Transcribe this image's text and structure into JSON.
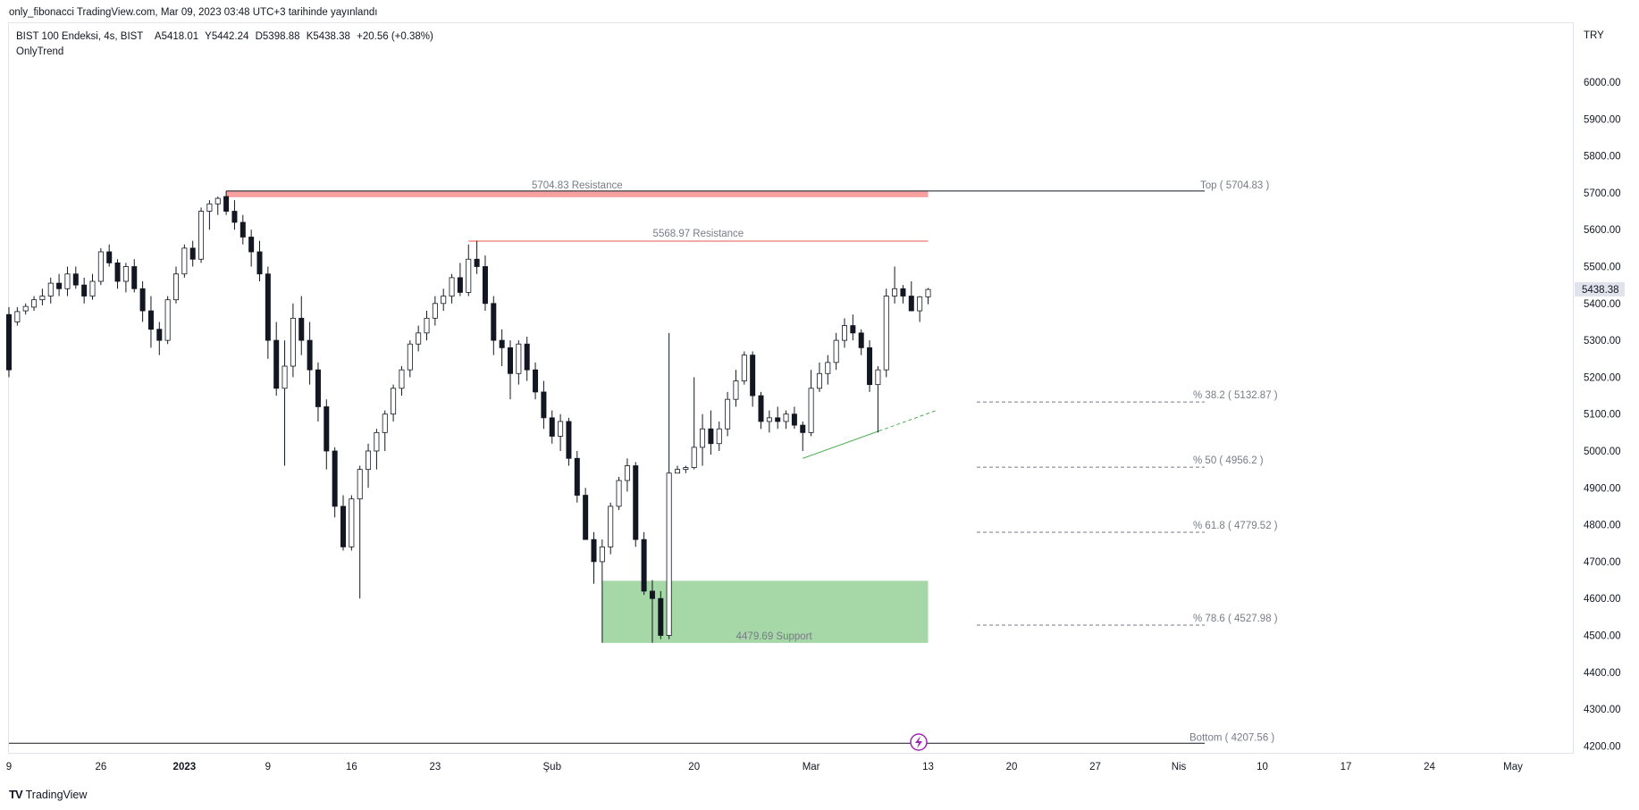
{
  "publish_line": "only_fibonacci TradingView.com, Mar 09, 2023 03:48 UTC+3 tarihinde yayınlandı",
  "legend": {
    "symbol": "BIST 100 Endeksi, 4s, BIST",
    "open": "A5418.01",
    "high": "Y5442.24",
    "low": "D5398.88",
    "close": "K5438.38",
    "change": "+20.56 (+0.38%)"
  },
  "indicator_name": "OnlyTrend",
  "currency": "TRY",
  "branding": "TradingView",
  "colors": {
    "up": "#ffffff",
    "down": "#131722",
    "wick": "#131722",
    "resistance": "#ef5350",
    "support": "#4caf50",
    "fib_line": "#787b86",
    "trend": "#4caf50"
  },
  "chart_data": {
    "type": "candlestick",
    "timeframe": "4s",
    "ylim": [
      4150,
      6090
    ],
    "y_ticks": [
      4200,
      4300,
      4400,
      4500,
      4600,
      4700,
      4800,
      4900,
      5000,
      5100,
      5200,
      5300,
      5400,
      5500,
      5600,
      5700,
      5800,
      5900,
      6000
    ],
    "y_tick_labels": [
      "4200.00",
      "4300.00",
      "4400.00",
      "4500.00",
      "4600.00",
      "4700.00",
      "4800.00",
      "4900.00",
      "5000.00",
      "5100.00",
      "5200.00",
      "5300.00",
      "5400.00",
      "5500.00",
      "5600.00",
      "5700.00",
      "5800.00",
      "5900.00",
      "6000.00"
    ],
    "x_labels": [
      "9",
      "26",
      "2023",
      "9",
      "16",
      "23",
      "Şub",
      "20",
      "Mar",
      "13",
      "20",
      "27",
      "Nis",
      "10",
      "17",
      "24",
      "May"
    ],
    "last_price_label": "5438.38",
    "last_price": 5438.38,
    "candle_range": [
      0,
      110
    ],
    "x_label_index": [
      0,
      11,
      21,
      31,
      41,
      51,
      65,
      82,
      96,
      110,
      120,
      130,
      140,
      150,
      160,
      170,
      180
    ],
    "candles": [
      [
        5370,
        5390,
        5200,
        5220
      ],
      [
        5350,
        5390,
        5340,
        5378
      ],
      [
        5380,
        5400,
        5370,
        5392
      ],
      [
        5390,
        5420,
        5380,
        5410
      ],
      [
        5410,
        5440,
        5395,
        5420
      ],
      [
        5420,
        5470,
        5400,
        5455
      ],
      [
        5455,
        5480,
        5420,
        5440
      ],
      [
        5440,
        5500,
        5420,
        5480
      ],
      [
        5480,
        5500,
        5440,
        5450
      ],
      [
        5450,
        5470,
        5400,
        5420
      ],
      [
        5420,
        5480,
        5410,
        5460
      ],
      [
        5460,
        5550,
        5450,
        5540
      ],
      [
        5540,
        5560,
        5500,
        5510
      ],
      [
        5510,
        5520,
        5440,
        5460
      ],
      [
        5460,
        5510,
        5430,
        5500
      ],
      [
        5500,
        5520,
        5430,
        5440
      ],
      [
        5440,
        5460,
        5350,
        5380
      ],
      [
        5380,
        5420,
        5280,
        5330
      ],
      [
        5330,
        5350,
        5260,
        5300
      ],
      [
        5300,
        5420,
        5290,
        5410
      ],
      [
        5410,
        5500,
        5400,
        5480
      ],
      [
        5480,
        5560,
        5470,
        5550
      ],
      [
        5550,
        5570,
        5500,
        5520
      ],
      [
        5520,
        5660,
        5510,
        5650
      ],
      [
        5650,
        5680,
        5600,
        5670
      ],
      [
        5670,
        5690,
        5640,
        5685
      ],
      [
        5690,
        5705,
        5640,
        5650
      ],
      [
        5650,
        5680,
        5600,
        5620
      ],
      [
        5620,
        5640,
        5560,
        5580
      ],
      [
        5580,
        5600,
        5500,
        5540
      ],
      [
        5540,
        5570,
        5460,
        5480
      ],
      [
        5480,
        5500,
        5250,
        5300
      ],
      [
        5300,
        5350,
        5150,
        5170
      ],
      [
        5170,
        5300,
        4960,
        5230
      ],
      [
        5230,
        5400,
        5200,
        5360
      ],
      [
        5360,
        5420,
        5260,
        5300
      ],
      [
        5300,
        5350,
        5180,
        5220
      ],
      [
        5220,
        5240,
        5080,
        5120
      ],
      [
        5120,
        5140,
        4950,
        5000
      ],
      [
        5000,
        5010,
        4820,
        4850
      ],
      [
        4850,
        4880,
        4730,
        4740
      ],
      [
        4740,
        4880,
        4730,
        4870
      ],
      [
        4870,
        4960,
        4600,
        4950
      ],
      [
        4950,
        5020,
        4900,
        5000
      ],
      [
        5000,
        5060,
        4950,
        5050
      ],
      [
        5050,
        5110,
        5000,
        5100
      ],
      [
        5100,
        5180,
        5080,
        5170
      ],
      [
        5170,
        5230,
        5150,
        5220
      ],
      [
        5220,
        5300,
        5200,
        5290
      ],
      [
        5290,
        5340,
        5270,
        5320
      ],
      [
        5320,
        5380,
        5300,
        5360
      ],
      [
        5360,
        5420,
        5340,
        5400
      ],
      [
        5400,
        5440,
        5380,
        5420
      ],
      [
        5420,
        5480,
        5400,
        5470
      ],
      [
        5470,
        5510,
        5420,
        5430
      ],
      [
        5430,
        5560,
        5420,
        5520
      ],
      [
        5520,
        5570,
        5480,
        5500
      ],
      [
        5500,
        5530,
        5380,
        5400
      ],
      [
        5400,
        5420,
        5260,
        5300
      ],
      [
        5300,
        5330,
        5230,
        5280
      ],
      [
        5280,
        5300,
        5140,
        5210
      ],
      [
        5210,
        5300,
        5180,
        5290
      ],
      [
        5290,
        5310,
        5190,
        5220
      ],
      [
        5220,
        5240,
        5140,
        5160
      ],
      [
        5160,
        5190,
        5060,
        5090
      ],
      [
        5090,
        5110,
        5020,
        5040
      ],
      [
        5040,
        5100,
        5000,
        5080
      ],
      [
        5080,
        5090,
        4960,
        4980
      ],
      [
        4980,
        5000,
        4860,
        4880
      ],
      [
        4880,
        4900,
        4760,
        4760
      ],
      [
        4760,
        4780,
        4640,
        4700
      ],
      [
        4700,
        4760,
        4480,
        4740
      ],
      [
        4740,
        4860,
        4720,
        4850
      ],
      [
        4850,
        4930,
        4840,
        4920
      ],
      [
        4920,
        4980,
        4890,
        4960
      ],
      [
        4960,
        4970,
        4740,
        4760
      ],
      [
        4760,
        4780,
        4610,
        4620
      ],
      [
        4620,
        4650,
        4480,
        4600
      ],
      [
        4600,
        4620,
        4490,
        4500
      ],
      [
        4500,
        5320,
        4490,
        4940
      ],
      [
        4940,
        4960,
        4940,
        4950
      ],
      [
        4950,
        4960,
        4940,
        4955
      ],
      [
        4955,
        5200,
        4950,
        5010
      ],
      [
        5010,
        5100,
        4960,
        5060
      ],
      [
        5060,
        5110,
        4990,
        5020
      ],
      [
        5020,
        5080,
        5000,
        5060
      ],
      [
        5060,
        5160,
        5040,
        5140
      ],
      [
        5140,
        5220,
        5120,
        5190
      ],
      [
        5190,
        5270,
        5180,
        5260
      ],
      [
        5260,
        5270,
        5120,
        5150
      ],
      [
        5150,
        5160,
        5060,
        5080
      ],
      [
        5080,
        5110,
        5050,
        5090
      ],
      [
        5090,
        5120,
        5060,
        5080
      ],
      [
        5080,
        5110,
        5060,
        5100
      ],
      [
        5100,
        5120,
        5060,
        5070
      ],
      [
        5070,
        5080,
        5000,
        5050
      ],
      [
        5050,
        5220,
        5040,
        5170
      ],
      [
        5170,
        5240,
        5160,
        5210
      ],
      [
        5210,
        5260,
        5180,
        5240
      ],
      [
        5240,
        5320,
        5220,
        5300
      ],
      [
        5300,
        5360,
        5280,
        5340
      ],
      [
        5340,
        5370,
        5300,
        5320
      ],
      [
        5320,
        5330,
        5260,
        5280
      ],
      [
        5280,
        5300,
        5160,
        5180
      ],
      [
        5180,
        5230,
        5050,
        5220
      ],
      [
        5220,
        5440,
        5200,
        5420
      ],
      [
        5420,
        5500,
        5400,
        5440
      ],
      [
        5440,
        5450,
        5400,
        5420
      ],
      [
        5420,
        5460,
        5380,
        5380
      ],
      [
        5380,
        5420,
        5350,
        5418
      ],
      [
        5418,
        5442,
        5398,
        5438
      ]
    ],
    "annotations": {
      "resistance_1": {
        "label": "5704.83 Resistance",
        "value": 5704.83,
        "band_low": 5688,
        "from_index": 26,
        "to_index": 110
      },
      "resistance_2": {
        "label": "5568.97 Resistance",
        "value": 5568.97,
        "from_index": 55,
        "to_index": 110
      },
      "support": {
        "label": "4479.69 Support",
        "value": 4479.69,
        "band_high": 4648,
        "from_index": 71,
        "to_index": 110
      },
      "top": {
        "label": "Top ( 5704.83 )",
        "value": 5704.83
      },
      "bottom": {
        "label": "Bottom ( 4207.56 )",
        "value": 4207.56
      },
      "fib_levels": [
        {
          "label": "% 38.2 ( 5132.87 )",
          "value": 5132.87
        },
        {
          "label": "% 50 ( 4956.2 )",
          "value": 4956.2
        },
        {
          "label": "% 61.8 ( 4779.52 )",
          "value": 4779.52
        },
        {
          "label": "% 78.6 ( 4527.98 )",
          "value": 4527.98
        }
      ],
      "trendline": {
        "from": [
          95,
          4980
        ],
        "to": [
          111,
          5110
        ]
      }
    }
  }
}
